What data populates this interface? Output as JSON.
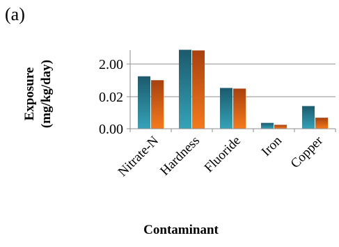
{
  "panel_label": "(a)",
  "chart_data": {
    "type": "bar",
    "title": "",
    "xlabel": "Contaminant",
    "ylabel_lines": [
      "Exposure",
      "(mg/kg/day)"
    ],
    "categories": [
      "Nitrate-N",
      "Hardness",
      "Fluoride",
      "Iron",
      "Copper"
    ],
    "y_tick_labels": [
      "0.00",
      "0.02",
      "2.00"
    ],
    "axis_note": "tick labels are not linearly spaced; bar heights given as fraction of the 0.00–2.00 axis span",
    "series": [
      {
        "color_top": "#1b5a6c",
        "color_bottom": "#35a3b8",
        "values": [
          0.81,
          1.22,
          0.63,
          0.09,
          0.35
        ]
      },
      {
        "color_top": "#a8410f",
        "color_bottom": "#f57a1c",
        "values": [
          0.75,
          1.21,
          0.62,
          0.06,
          0.17
        ]
      }
    ],
    "grid": true,
    "legend": "none"
  }
}
